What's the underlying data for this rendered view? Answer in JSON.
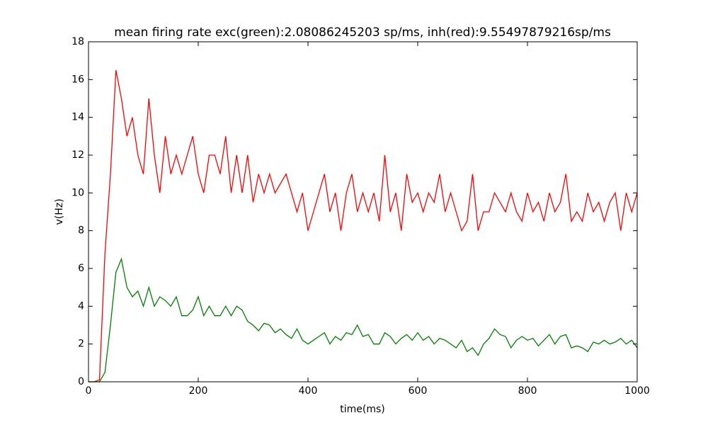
{
  "chart_data": {
    "type": "line",
    "title": "mean firing rate exc(green):2.08086245203 sp/ms, inh(red):9.55497879216sp/ms",
    "x_label": "time(ms)",
    "y_label": "v(Hz)",
    "x": [
      0,
      10,
      20,
      30,
      40,
      50,
      60,
      70,
      80,
      90,
      100,
      110,
      120,
      130,
      140,
      150,
      160,
      170,
      180,
      190,
      200,
      210,
      220,
      230,
      240,
      250,
      260,
      270,
      280,
      290,
      300,
      310,
      320,
      330,
      340,
      350,
      360,
      370,
      380,
      390,
      400,
      410,
      420,
      430,
      440,
      450,
      460,
      470,
      480,
      490,
      500,
      510,
      520,
      530,
      540,
      550,
      560,
      570,
      580,
      590,
      600,
      610,
      620,
      630,
      640,
      650,
      660,
      670,
      680,
      690,
      700,
      710,
      720,
      730,
      740,
      750,
      760,
      770,
      780,
      790,
      800,
      810,
      820,
      830,
      840,
      850,
      860,
      870,
      880,
      890,
      900,
      910,
      920,
      930,
      940,
      950,
      960,
      970,
      980,
      990,
      1000
    ],
    "series": [
      {
        "color": "#ff0000",
        "values": [
          0,
          0,
          0.1,
          6.8,
          11,
          16.5,
          15,
          13,
          14,
          12,
          11,
          15,
          12,
          10,
          13,
          11,
          12,
          11,
          12,
          13,
          11,
          10,
          12,
          12,
          11,
          13,
          10,
          12,
          10,
          12,
          9.5,
          11,
          10,
          11,
          10,
          10.5,
          11,
          10,
          9,
          10,
          8,
          9,
          10,
          11,
          9,
          10,
          8,
          10,
          11,
          9,
          10,
          9,
          10,
          8.5,
          12,
          9,
          10,
          8,
          11,
          9.5,
          10,
          9,
          10,
          9.5,
          11,
          9,
          10,
          9,
          8,
          8.5,
          11,
          8,
          9,
          9,
          10,
          9.5,
          9,
          10,
          9,
          8.5,
          10,
          9,
          9.5,
          8.5,
          10,
          9,
          9.5,
          11,
          8.5,
          9,
          8.5,
          10,
          9,
          9.5,
          8.5,
          9.5,
          10,
          8,
          10,
          9,
          10
        ]
      },
      {
        "color": "#008000",
        "values": [
          0,
          0,
          0,
          0.5,
          3,
          5.8,
          6.5,
          5,
          4.5,
          4.8,
          4,
          5,
          4,
          4.5,
          4.3,
          4,
          4.5,
          3.5,
          3.5,
          3.8,
          4.5,
          3.5,
          4,
          3.5,
          3.5,
          4,
          3.5,
          4,
          3.8,
          3.2,
          3,
          2.7,
          3.1,
          3,
          2.6,
          2.8,
          2.5,
          2.3,
          2.8,
          2.2,
          2,
          2.2,
          2.4,
          2.6,
          2,
          2.4,
          2.2,
          2.6,
          2.5,
          3,
          2.4,
          2.5,
          2,
          2,
          2.6,
          2.4,
          2,
          2.3,
          2.5,
          2.2,
          2.6,
          2.2,
          2.4,
          2,
          2.3,
          2.2,
          2,
          1.8,
          2.2,
          1.6,
          1.8,
          1.4,
          2,
          2.3,
          2.8,
          2.5,
          2.4,
          1.8,
          2.2,
          2.4,
          2.2,
          2.3,
          1.9,
          2.2,
          2.5,
          2,
          2.4,
          2.5,
          1.8,
          1.9,
          1.8,
          1.6,
          2.1,
          2,
          2.2,
          2,
          2.1,
          2.3,
          2,
          2.2,
          1.8
        ]
      }
    ],
    "xlim": [
      0,
      1000
    ],
    "xticks": [
      0,
      200,
      400,
      600,
      800,
      1000
    ],
    "ylim": [
      0,
      18
    ],
    "yticks": [
      0,
      2,
      4,
      6,
      8,
      10,
      12,
      14,
      16,
      18
    ],
    "grid": false
  }
}
